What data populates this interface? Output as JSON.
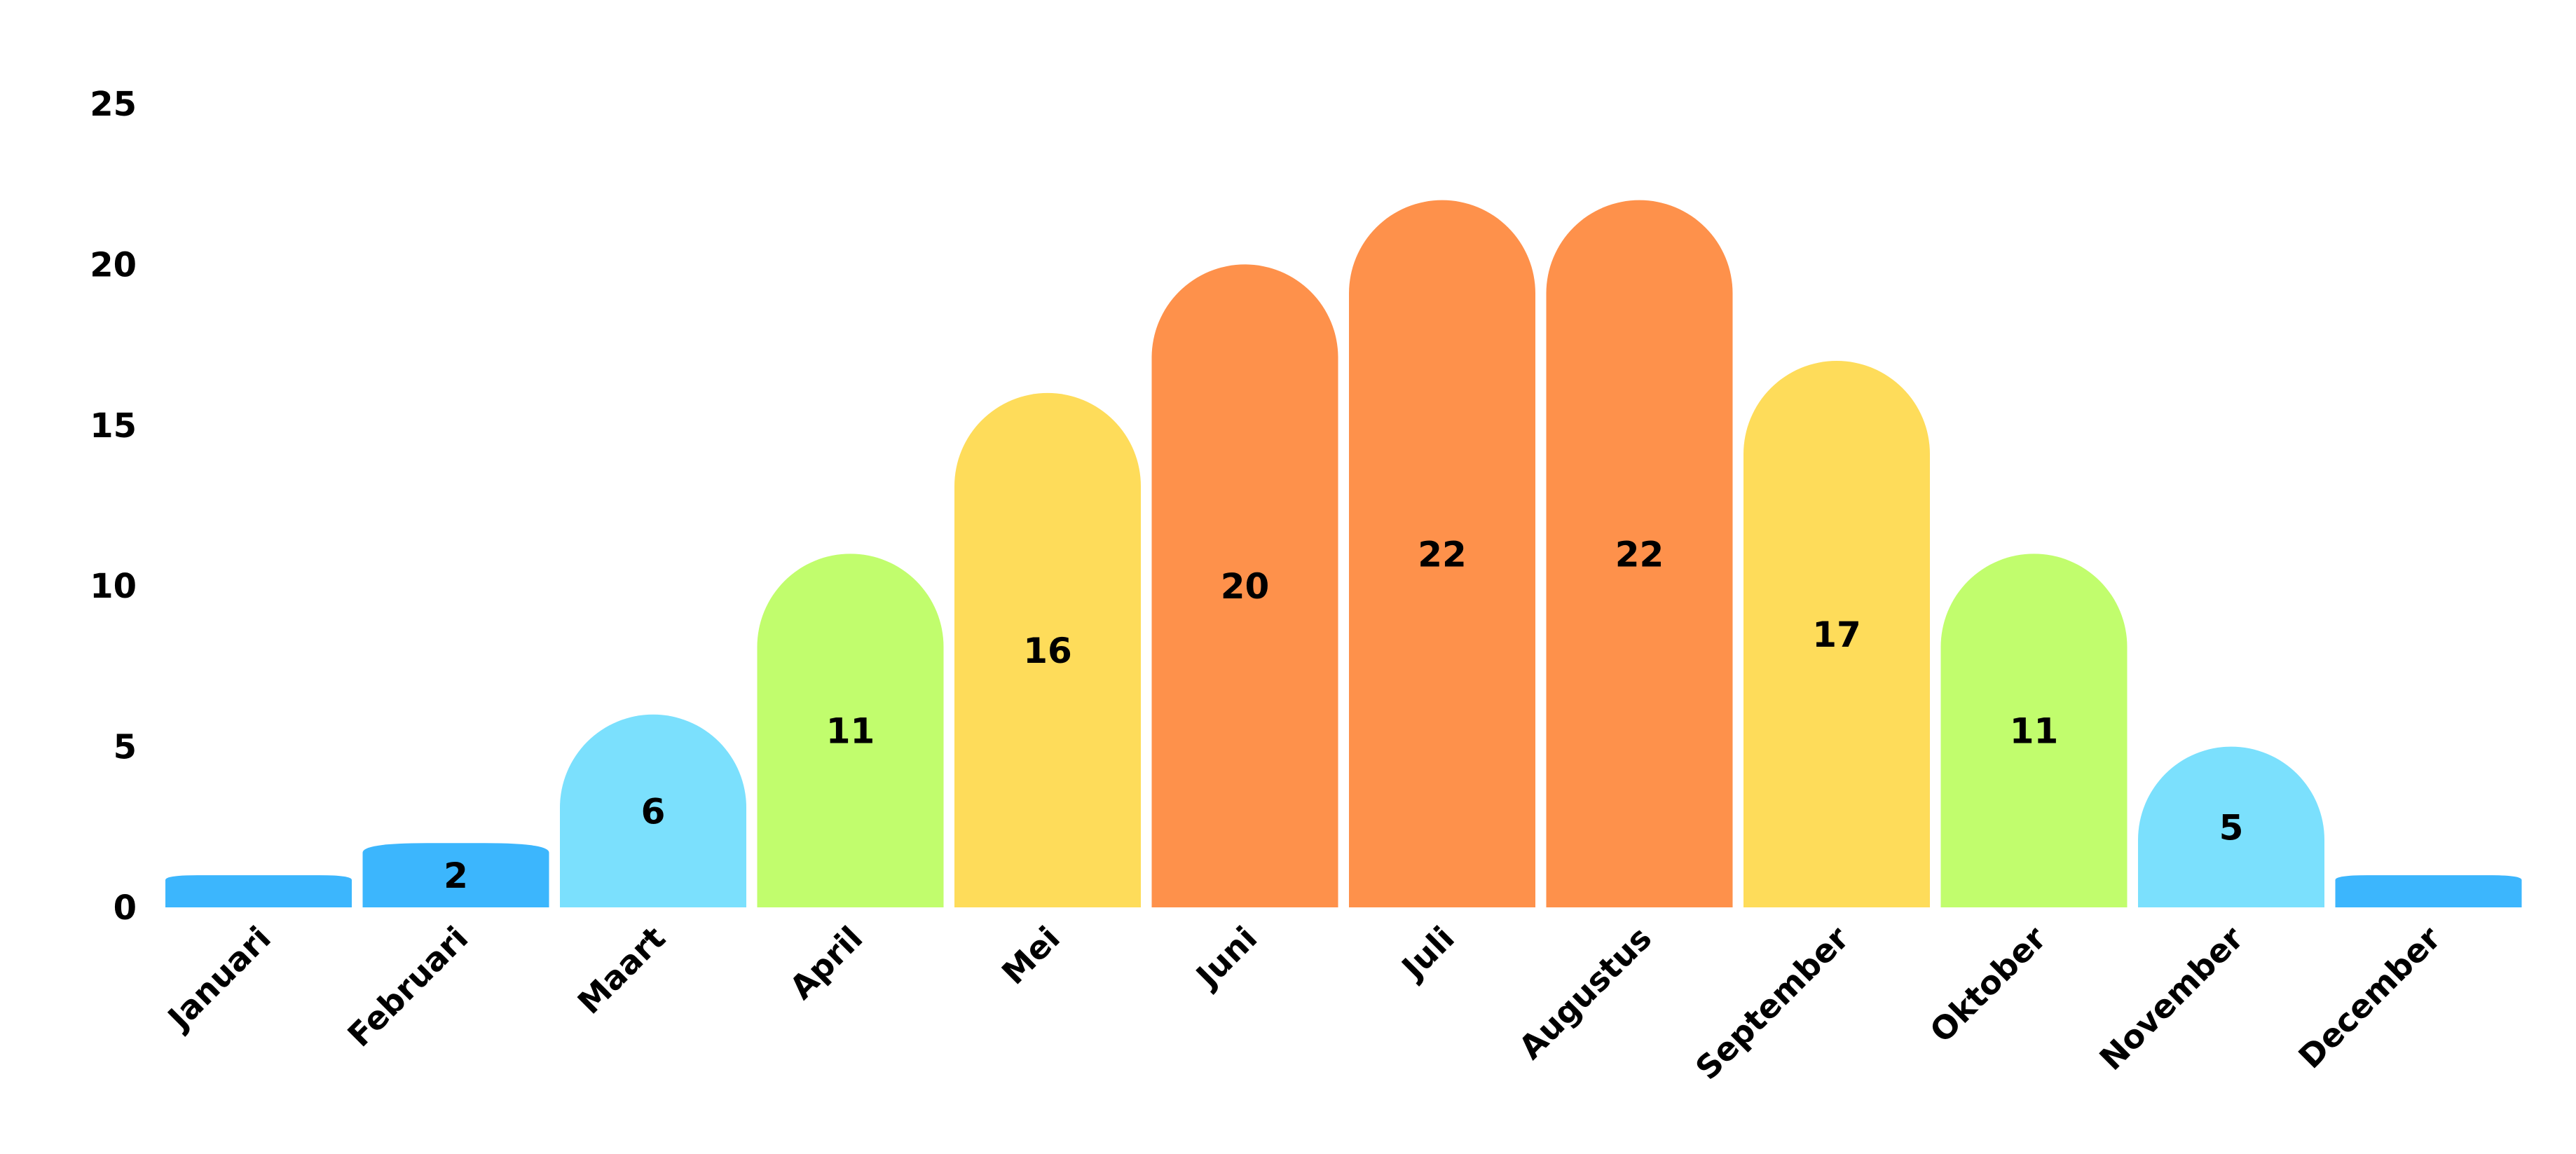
{
  "chart_data": {
    "type": "bar",
    "title": "",
    "xlabel": "",
    "ylabel": "",
    "categories": [
      "Januari",
      "Februari",
      "Maart",
      "April",
      "Mei",
      "Juni",
      "Juli",
      "Augustus",
      "September",
      "Oktober",
      "November",
      "December"
    ],
    "values": [
      1,
      2,
      6,
      11,
      16,
      20,
      22,
      22,
      17,
      11,
      5,
      1
    ],
    "data_labels": [
      "",
      "2",
      "6",
      "11",
      "16",
      "20",
      "22",
      "22",
      "17",
      "11",
      "5",
      ""
    ],
    "colors": [
      "#3cb6fd",
      "#3cb6fd",
      "#7be0fd",
      "#c1fd6d",
      "#fedc5a",
      "#fe914b",
      "#fe914b",
      "#fe914b",
      "#fedc5a",
      "#c1fd6d",
      "#7be0fd",
      "#3cb6fd"
    ],
    "ylim": [
      0,
      25
    ],
    "yticks": [
      "0",
      "5",
      "10",
      "15",
      "20",
      "25"
    ],
    "grid": false,
    "legend": "none",
    "bar_shape": "rounded-top"
  }
}
